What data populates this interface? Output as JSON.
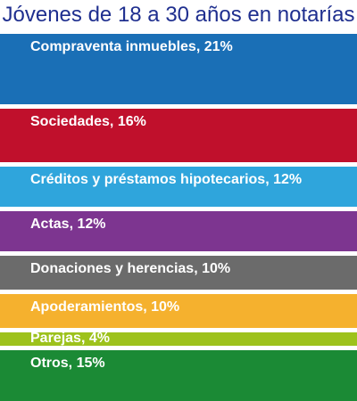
{
  "title": "Jóvenes de 18 a 30 años en notarías",
  "chart_data": {
    "type": "bar",
    "title": "Jóvenes de 18 a 30 años en notarías",
    "categories": [
      "Compraventa inmuebles",
      "Sociedades",
      "Créditos y préstamos hipotecarios",
      "Actas",
      "Donaciones y herencias",
      "Apoderamientos",
      "Parejas",
      "Otros"
    ],
    "values": [
      21,
      16,
      12,
      12,
      10,
      10,
      4,
      15
    ],
    "labels": [
      "Compraventa inmuebles, 21%",
      "Sociedades, 16%",
      "Créditos y préstamos hipotecarios, 12%",
      "Actas, 12%",
      "Donaciones y herencias, 10%",
      "Apoderamientos, 10%",
      "Parejas, 4%",
      "Otros, 15%"
    ],
    "colors": [
      "#1a6fb6",
      "#c0102c",
      "#2fa5dc",
      "#7d3590",
      "#6b6b6b",
      "#f5b12e",
      "#9dc21c",
      "#1b8a35"
    ],
    "unit": "%"
  }
}
